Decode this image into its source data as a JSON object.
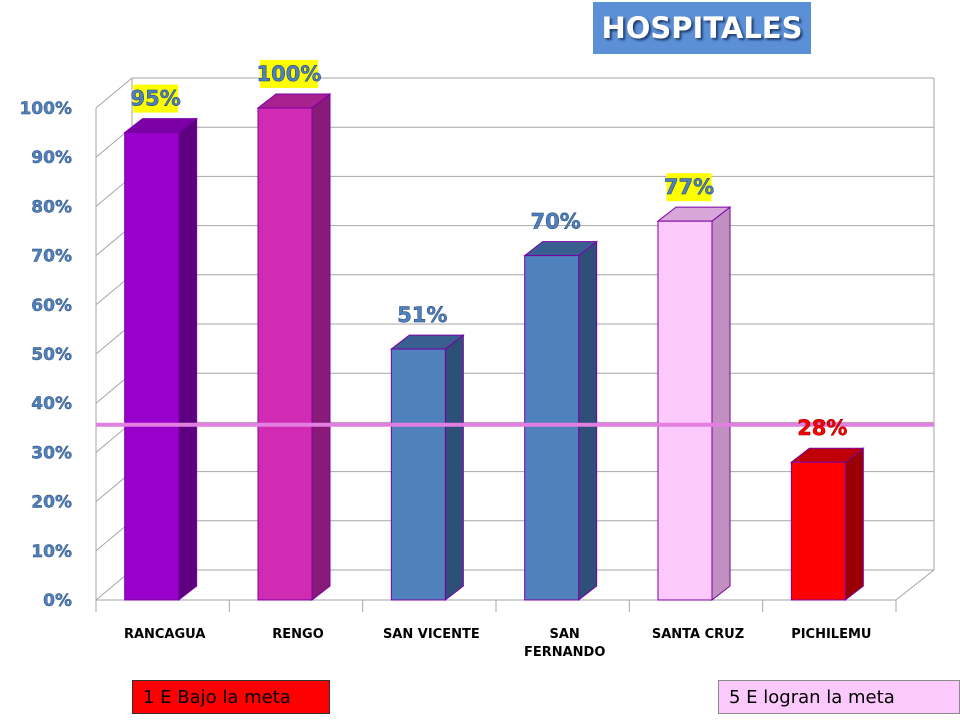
{
  "title": "HOSPITALES",
  "legend": {
    "below_goal": "1 E Bajo la meta",
    "meet_goal": "5 E logran la meta"
  },
  "colors": {
    "title_bg": "#5b8fd6",
    "goal_line": "#e37fe0",
    "label_highlight": "#ffff00"
  },
  "chart_data": {
    "type": "bar",
    "categories": [
      "RANCAGUA",
      "RENGO",
      "SAN VICENTE",
      "SAN FERNANDO",
      "SANTA CRUZ",
      "PICHILEMU"
    ],
    "category_lines": [
      [
        "RANCAGUA"
      ],
      [
        "RENGO"
      ],
      [
        "SAN VICENTE"
      ],
      [
        "SAN",
        "FERNANDO"
      ],
      [
        "SANTA CRUZ"
      ],
      [
        "PICHILEMU"
      ]
    ],
    "values": [
      95,
      100,
      51,
      70,
      77,
      28
    ],
    "data_labels": [
      "95%",
      "100%",
      "51%",
      "70%",
      "77%",
      "28%"
    ],
    "bar_colors": [
      {
        "front": "#9900cc",
        "side": "#5c0080",
        "top": "#7a00a6"
      },
      {
        "front": "#d12bb3",
        "side": "#8a1a78",
        "top": "#a8228f"
      },
      {
        "front": "#4f81bd",
        "side": "#2e4f78",
        "top": "#385f8f"
      },
      {
        "front": "#4f81bd",
        "side": "#2e4f78",
        "top": "#385f8f"
      },
      {
        "front": "#fbc9fb",
        "side": "#c090c0",
        "top": "#d9a6d9"
      },
      {
        "front": "#ff0000",
        "side": "#9a0000",
        "top": "#c00000"
      }
    ],
    "label_styles": [
      {
        "bg": "#ffff00",
        "fg": "#4f81bd"
      },
      {
        "bg": "#ffff00",
        "fg": "#4f81bd"
      },
      {
        "bg": "",
        "fg": "#4f81bd"
      },
      {
        "bg": "",
        "fg": "#4f81bd"
      },
      {
        "bg": "#ffff00",
        "fg": "#4f81bd"
      },
      {
        "bg": "",
        "fg": "#ff0000"
      }
    ],
    "ylim": [
      0,
      100
    ],
    "yticks": [
      "0%",
      "10%",
      "20%",
      "30%",
      "40%",
      "50%",
      "60%",
      "70%",
      "80%",
      "90%",
      "100%"
    ],
    "goal_line": 35,
    "grid": true
  }
}
